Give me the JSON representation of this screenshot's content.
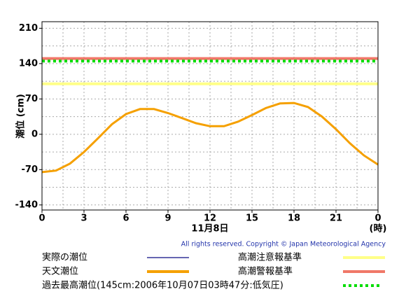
{
  "chart_data": {
    "type": "line",
    "ylabel": "潮位 (cm)",
    "xlabel": "11月8日",
    "xunit": "(時)",
    "copyright": "All rights reserved. Copyright © Japan Meteorological Agency",
    "x": [
      0,
      1,
      2,
      3,
      4,
      5,
      6,
      7,
      8,
      9,
      10,
      11,
      12,
      13,
      14,
      15,
      16,
      17,
      18,
      19,
      20,
      21,
      22,
      23,
      24
    ],
    "series": [
      {
        "name": "実際の潮位",
        "color": "#333399",
        "values": [
          null,
          null,
          null,
          null,
          null,
          null,
          null,
          null,
          null,
          null,
          null,
          null,
          null,
          null,
          null,
          null,
          null,
          null,
          null,
          null,
          null,
          null,
          null,
          null,
          null
        ]
      },
      {
        "name": "天文潮位",
        "color": "#f5a000",
        "values": [
          -75,
          -72,
          -58,
          -35,
          -8,
          20,
          40,
          50,
          50,
          42,
          32,
          22,
          16,
          16,
          25,
          38,
          52,
          61,
          62,
          54,
          35,
          10,
          -18,
          -42,
          -60
        ]
      }
    ],
    "reference_lines": [
      {
        "name": "高潮注意報基準",
        "value": 100,
        "color": "#ffff88",
        "style": "solid"
      },
      {
        "name": "高潮警報基準",
        "value": 150,
        "color": "#f07868",
        "style": "solid"
      },
      {
        "name": "過去最高潮位(145cm:2006年10月07日03時47分:低気圧)",
        "value": 145,
        "color": "#00dd00",
        "style": "dotted"
      }
    ],
    "xlim": [
      0,
      24
    ],
    "xticks": [
      0,
      3,
      6,
      9,
      12,
      15,
      18,
      21,
      {
        "value": 24,
        "label": "0"
      }
    ],
    "ylim": [
      -150,
      223
    ],
    "yticks": [
      -140,
      -70,
      0,
      70,
      140,
      210
    ],
    "grid": true
  }
}
